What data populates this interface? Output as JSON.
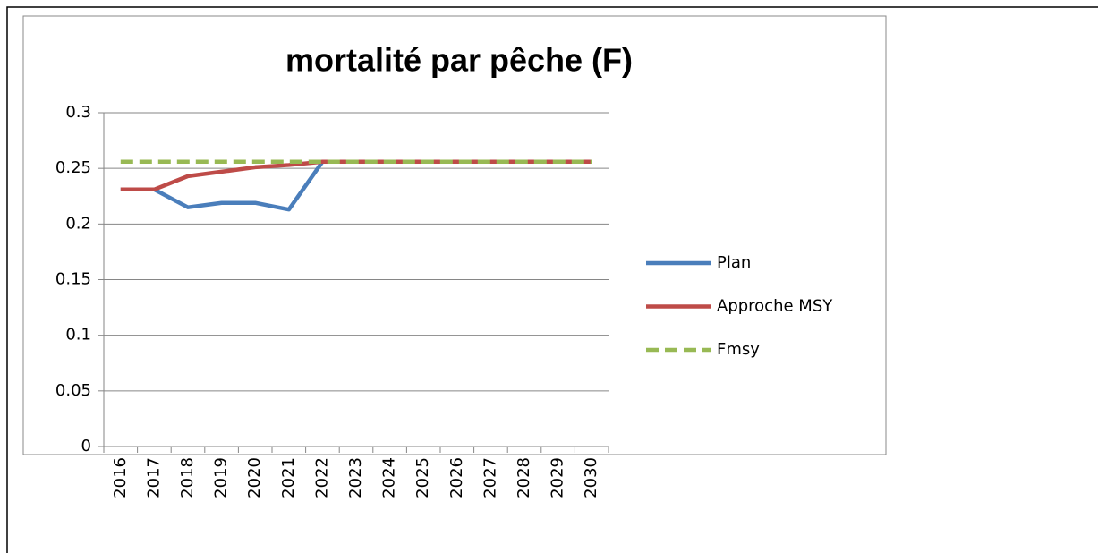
{
  "chart_data": {
    "type": "line",
    "title": "mortalité par pêche (F)",
    "categories": [
      "2016",
      "2017",
      "2018",
      "2019",
      "2020",
      "2021",
      "2022",
      "2023",
      "2024",
      "2025",
      "2026",
      "2027",
      "2028",
      "2029",
      "2030"
    ],
    "series": [
      {
        "name": "Plan",
        "color": "#4a7ebb",
        "dash": false,
        "values": [
          0.231,
          0.231,
          0.215,
          0.219,
          0.219,
          0.213,
          0.256,
          0.256,
          0.256,
          0.256,
          0.256,
          0.256,
          0.256,
          0.256,
          0.256
        ]
      },
      {
        "name": "Approche MSY",
        "color": "#be4b48",
        "dash": false,
        "values": [
          0.231,
          0.231,
          0.243,
          0.247,
          0.251,
          0.253,
          0.256,
          0.256,
          0.256,
          0.256,
          0.256,
          0.256,
          0.256,
          0.256,
          0.256
        ]
      },
      {
        "name": "Fmsy",
        "color": "#98b954",
        "dash": true,
        "values": [
          0.256,
          0.256,
          0.256,
          0.256,
          0.256,
          0.256,
          0.256,
          0.256,
          0.256,
          0.256,
          0.256,
          0.256,
          0.256,
          0.256,
          0.256
        ]
      }
    ],
    "ylim": [
      0,
      0.3
    ],
    "yticks": [
      0,
      0.05,
      0.1,
      0.15,
      0.2,
      0.25,
      0.3
    ],
    "grid": true,
    "legend": "right"
  }
}
